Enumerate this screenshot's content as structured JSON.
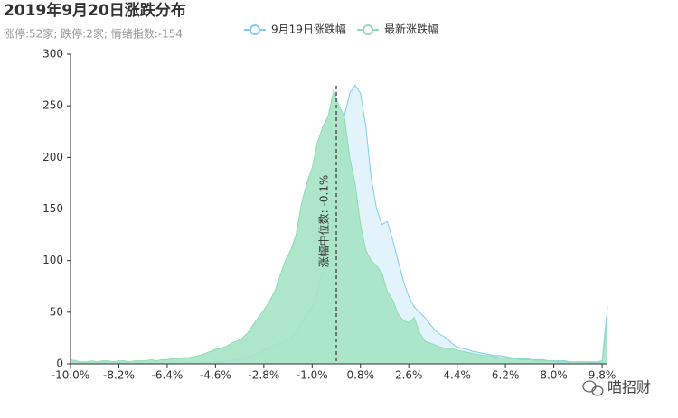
{
  "chart_data": {
    "type": "area",
    "title": "2019年9月20日涨跌分布",
    "subtitle": "涨停:52家; 跌停:2家; 情绪指数:-154",
    "x": [
      -10.0,
      -9.8,
      -9.6,
      -9.4,
      -9.2,
      -9.0,
      -8.8,
      -8.6,
      -8.4,
      -8.2,
      -8.0,
      -7.8,
      -7.6,
      -7.4,
      -7.2,
      -7.0,
      -6.8,
      -6.6,
      -6.4,
      -6.2,
      -6.0,
      -5.8,
      -5.6,
      -5.4,
      -5.2,
      -5.0,
      -4.8,
      -4.6,
      -4.4,
      -4.2,
      -4.0,
      -3.8,
      -3.6,
      -3.4,
      -3.2,
      -3.0,
      -2.8,
      -2.6,
      -2.4,
      -2.2,
      -2.0,
      -1.8,
      -1.6,
      -1.4,
      -1.2,
      -1.0,
      -0.8,
      -0.6,
      -0.4,
      -0.2,
      0.0,
      0.2,
      0.4,
      0.6,
      0.8,
      1.0,
      1.2,
      1.4,
      1.6,
      1.8,
      2.0,
      2.2,
      2.4,
      2.6,
      2.8,
      3.0,
      3.2,
      3.4,
      3.6,
      3.8,
      4.0,
      4.2,
      4.4,
      4.6,
      4.8,
      5.0,
      5.2,
      5.4,
      5.6,
      5.8,
      6.0,
      6.2,
      6.4,
      6.6,
      6.8,
      7.0,
      7.2,
      7.4,
      7.6,
      7.8,
      8.0,
      8.2,
      8.4,
      8.6,
      8.8,
      9.0,
      9.2,
      9.4,
      9.6,
      9.8,
      10.0
    ],
    "series": [
      {
        "name": "9月19日涨跌幅",
        "color": "#7fcdf0",
        "fill": "#dff2fb",
        "values": [
          3,
          1,
          1,
          0,
          1,
          0,
          1,
          1,
          0,
          1,
          1,
          0,
          1,
          1,
          0,
          1,
          1,
          1,
          0,
          1,
          1,
          1,
          2,
          1,
          1,
          2,
          1,
          2,
          2,
          3,
          3,
          4,
          5,
          6,
          8,
          10,
          13,
          15,
          18,
          20,
          22,
          25,
          30,
          40,
          48,
          55,
          70,
          90,
          110,
          140,
          180,
          240,
          262,
          270,
          262,
          230,
          180,
          150,
          135,
          138,
          120,
          100,
          80,
          65,
          55,
          50,
          45,
          38,
          32,
          28,
          25,
          20,
          16,
          15,
          14,
          12,
          11,
          10,
          9,
          8,
          8,
          7,
          6,
          5,
          5,
          5,
          4,
          4,
          4,
          3,
          3,
          3,
          3,
          2,
          2,
          2,
          2,
          2,
          2,
          3,
          55
        ]
      },
      {
        "name": "最新涨跌幅",
        "color": "#8fdcb3",
        "fill": "#a5e3c4",
        "values": [
          4,
          3,
          2,
          2,
          3,
          2,
          3,
          3,
          2,
          3,
          3,
          2,
          3,
          3,
          3,
          4,
          3,
          4,
          4,
          5,
          5,
          6,
          6,
          7,
          8,
          10,
          12,
          14,
          15,
          17,
          20,
          22,
          25,
          30,
          38,
          45,
          52,
          60,
          70,
          85,
          100,
          110,
          125,
          155,
          175,
          190,
          215,
          230,
          240,
          265,
          250,
          240,
          200,
          175,
          135,
          110,
          100,
          95,
          88,
          70,
          62,
          48,
          42,
          40,
          45,
          30,
          22,
          20,
          18,
          16,
          15,
          15,
          13,
          12,
          11,
          10,
          9,
          8,
          8,
          7,
          6,
          6,
          5,
          5,
          4,
          4,
          4,
          3,
          3,
          3,
          3,
          2,
          2,
          2,
          2,
          2,
          2,
          1,
          1,
          2,
          45
        ]
      }
    ],
    "xlim": [
      -10.0,
      10.0
    ],
    "xticks": [
      {
        "value": -10.0,
        "label": "-10.0%"
      },
      {
        "value": -8.2,
        "label": "-8.2%"
      },
      {
        "value": -6.4,
        "label": "-6.4%"
      },
      {
        "value": -4.6,
        "label": "-4.6%"
      },
      {
        "value": -2.8,
        "label": "-2.8%"
      },
      {
        "value": -1.0,
        "label": "-1.0%"
      },
      {
        "value": 0.8,
        "label": "0.8%"
      },
      {
        "value": 2.6,
        "label": "2.6%"
      },
      {
        "value": 4.4,
        "label": "4.4%"
      },
      {
        "value": 6.2,
        "label": "6.2%"
      },
      {
        "value": 8.0,
        "label": "8.0%"
      },
      {
        "value": 9.8,
        "label": "9.8%"
      }
    ],
    "ylim": [
      0,
      300
    ],
    "yticks": [
      0,
      50,
      100,
      150,
      200,
      250,
      300
    ],
    "median_line": {
      "value": -0.1,
      "label": "涨幅中位数: -0.1%"
    },
    "watermark": "喵招财"
  }
}
